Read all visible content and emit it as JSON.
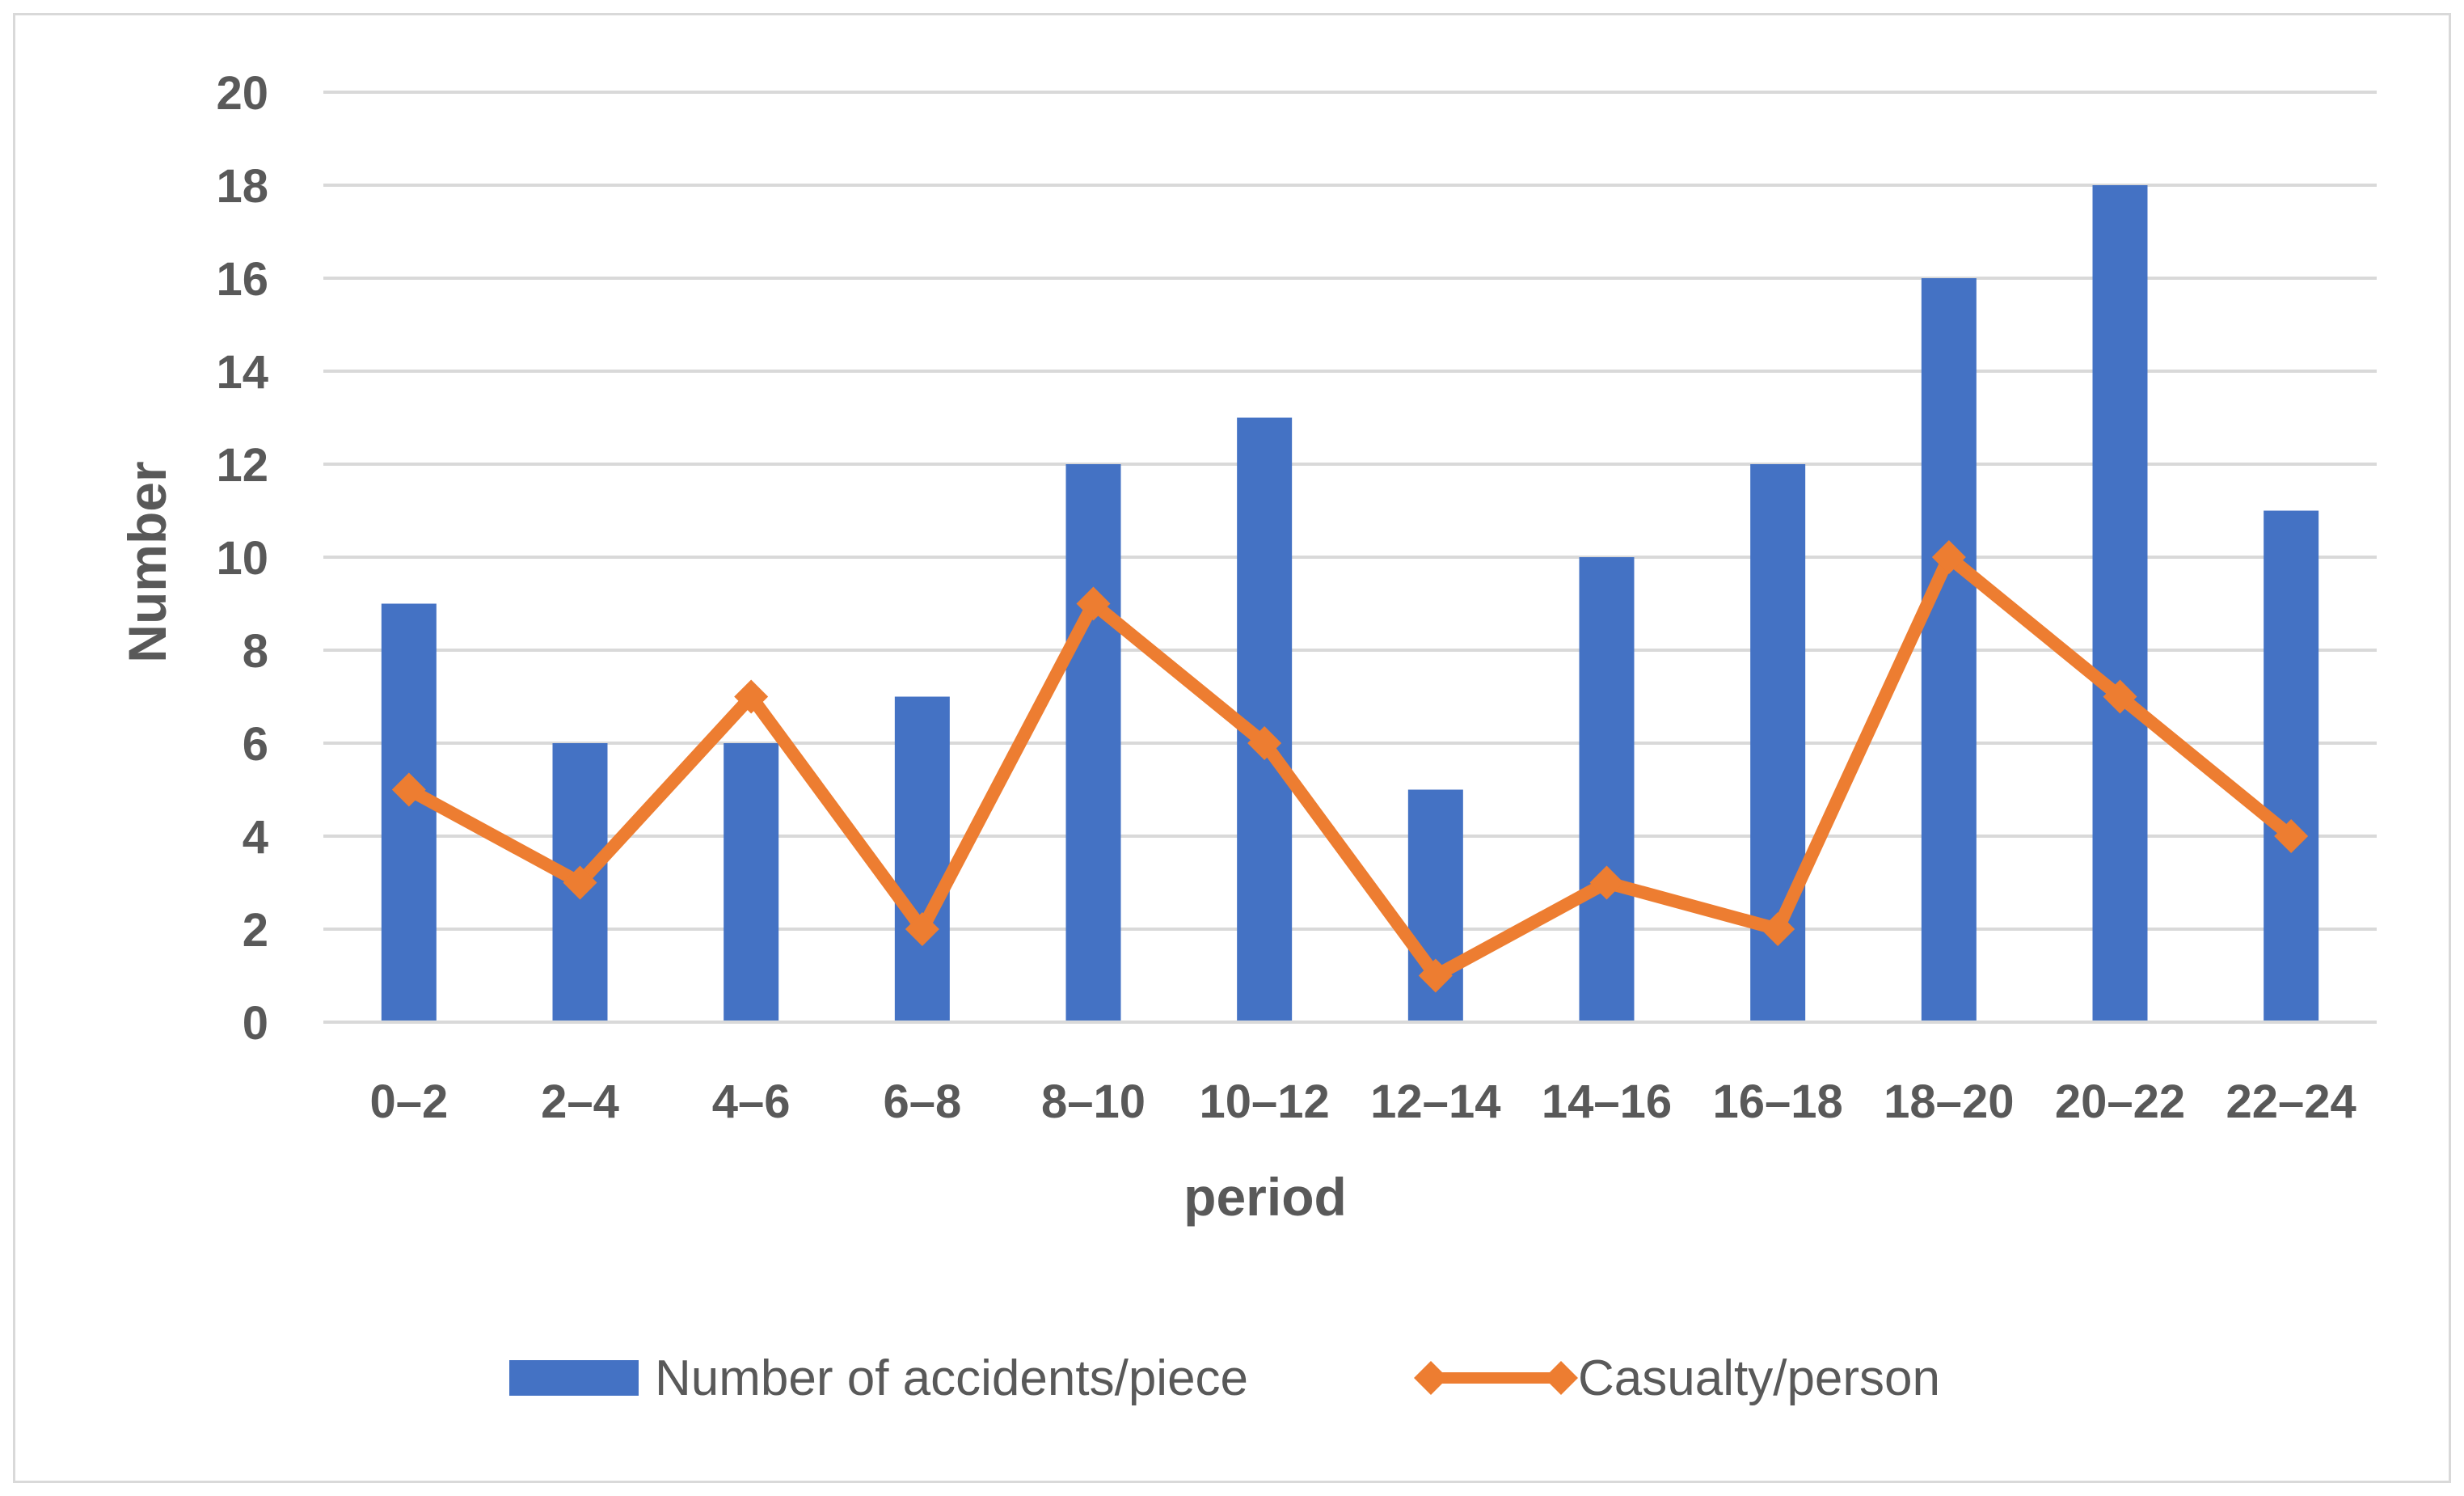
{
  "chart_data": {
    "type": "bar",
    "title": "",
    "xlabel": "period",
    "ylabel": "Number",
    "ylim": [
      0,
      20
    ],
    "yticks": [
      0,
      2,
      4,
      6,
      8,
      10,
      12,
      14,
      16,
      18,
      20
    ],
    "grid": true,
    "legend_position": "bottom",
    "categories": [
      "0–2",
      "2–4",
      "4–6",
      "6–8",
      "8–10",
      "10–12",
      "12–14",
      "14–16",
      "16–18",
      "18–20",
      "20–22",
      "22–24"
    ],
    "series": [
      {
        "name": "Number of accidents/piece",
        "type": "bar",
        "color": "#4472c4",
        "values": [
          9,
          6,
          6,
          7,
          12,
          13,
          5,
          10,
          12,
          16,
          18,
          11
        ]
      },
      {
        "name": "Casualty/person",
        "type": "line",
        "color": "#ed7d31",
        "marker": "diamond",
        "values": [
          5,
          3,
          7,
          2,
          9,
          6,
          1,
          3,
          2,
          10,
          7,
          4
        ]
      }
    ]
  }
}
